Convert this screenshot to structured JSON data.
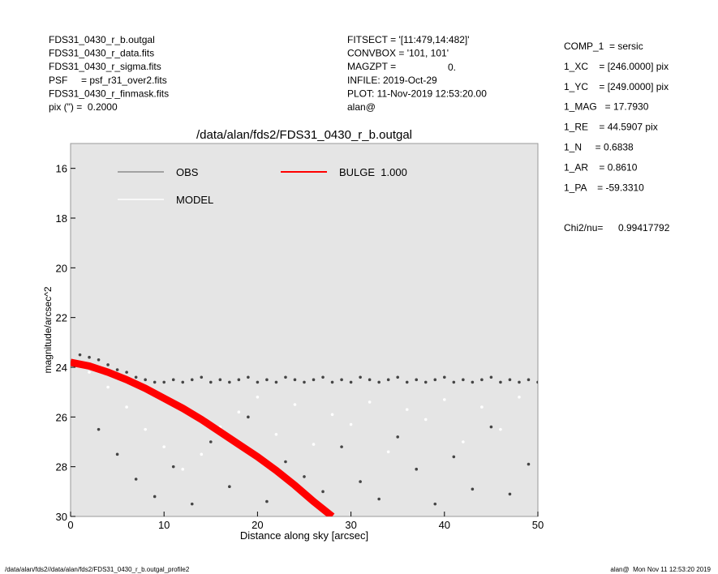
{
  "header": {
    "left": [
      "FDS31_0430_r_b.outgal",
      "FDS31_0430_r_data.fits",
      "FDS31_0430_r_sigma.fits",
      "PSF     = psf_r31_over2.fits",
      "FDS31_0430_r_finmask.fits",
      "pix (\") =  0.2000"
    ],
    "middle": [
      "FITSECT = '[11:479,14:482]'",
      "CONVBOX = '101, 101'",
      "MAGZPT =",
      "INFILE: 2019-Oct-29",
      "PLOT: 11-Nov-2019 12:53:20.00",
      "alan@"
    ],
    "magzpt_value": "0.",
    "right": [
      "COMP_1  = sersic",
      "1_XC    = [246.0000] pix",
      "1_YC    = [249.0000] pix",
      "1_MAG   = 17.7930",
      "1_RE    = 44.5907 pix",
      "1_N     = 0.6838",
      "1_AR    = 0.8610",
      "1_PA    = -59.3310"
    ],
    "chi2_label": "Chi2/nu=",
    "chi2_value": "0.99417792"
  },
  "footer": {
    "left": "/data/alan/fds2//data/alan/fds2/FDS31_0430_r_b.outgal_profile2",
    "right": "alan@  Mon Nov 11 12:53:20 2019"
  },
  "chart_data": {
    "type": "scatter",
    "title": "/data/alan/fds2/FDS31_0430_r_b.outgal",
    "x_label": "Distance along sky [arcsec]",
    "y_label": "magnitude/arcsec^2",
    "xlim": [
      0,
      50
    ],
    "xticks": [
      0,
      10,
      20,
      30,
      40,
      50
    ],
    "ylim": [
      30,
      15
    ],
    "yticks": [
      16,
      18,
      20,
      22,
      24,
      26,
      28,
      30
    ],
    "background": "#e5e5e5",
    "series": [
      {
        "name": "OBS",
        "color": "#8c8c8c",
        "point_color": "#454545",
        "kind": "points",
        "x": [
          1,
          2,
          3,
          4,
          5,
          6,
          7,
          8,
          9,
          10,
          11,
          12,
          13,
          14,
          15,
          16,
          17,
          18,
          19,
          20,
          21,
          22,
          23,
          24,
          25,
          26,
          27,
          28,
          29,
          30,
          31,
          32,
          33,
          34,
          35,
          36,
          37,
          38,
          39,
          40,
          41,
          42,
          43,
          44,
          45,
          46,
          47,
          48,
          49,
          50,
          3,
          5,
          7,
          9,
          11,
          13,
          15,
          17,
          19,
          21,
          23,
          25,
          27,
          29,
          31,
          33,
          35,
          37,
          39,
          41,
          43,
          45,
          47,
          49
        ],
        "values": [
          23.5,
          23.6,
          23.7,
          23.9,
          24.1,
          24.2,
          24.4,
          24.5,
          24.6,
          24.6,
          24.5,
          24.6,
          24.5,
          24.4,
          24.6,
          24.5,
          24.6,
          24.5,
          24.4,
          24.6,
          24.5,
          24.6,
          24.4,
          24.5,
          24.6,
          24.5,
          24.4,
          24.6,
          24.5,
          24.6,
          24.4,
          24.5,
          24.6,
          24.5,
          24.4,
          24.6,
          24.5,
          24.6,
          24.5,
          24.4,
          24.6,
          24.5,
          24.6,
          24.5,
          24.4,
          24.6,
          24.5,
          24.6,
          24.5,
          24.6,
          26.5,
          27.5,
          28.5,
          29.2,
          28,
          29.5,
          27,
          28.8,
          26,
          29.4,
          27.8,
          28.4,
          29,
          27.2,
          28.6,
          29.3,
          26.8,
          28.1,
          29.5,
          27.6,
          28.9,
          26.4,
          29.1,
          27.9
        ]
      },
      {
        "name": "MODEL",
        "color": "#ffffff",
        "kind": "points",
        "x": [
          2,
          4,
          6,
          8,
          10,
          12,
          14,
          16,
          18,
          20,
          22,
          24,
          26,
          28,
          30,
          32,
          34,
          36,
          38,
          40,
          42,
          44,
          46,
          48
        ],
        "values": [
          24.2,
          24.8,
          25.6,
          26.5,
          27.2,
          28.1,
          27.5,
          26.4,
          25.8,
          25.2,
          26.7,
          25.5,
          27.1,
          25.9,
          26.3,
          25.4,
          27.4,
          25.7,
          26.1,
          25.3,
          27,
          25.6,
          26.5,
          25.2
        ]
      },
      {
        "name": "BULGE  1.000",
        "color": "#ff0000",
        "kind": "line",
        "x": [
          0,
          2,
          4,
          6,
          8,
          10,
          12,
          14,
          16,
          18,
          20,
          22,
          24,
          26,
          28
        ],
        "values": [
          23.8,
          23.95,
          24.2,
          24.5,
          24.85,
          25.25,
          25.65,
          26.1,
          26.6,
          27.1,
          27.6,
          28.15,
          28.75,
          29.4,
          30.0
        ]
      }
    ]
  }
}
